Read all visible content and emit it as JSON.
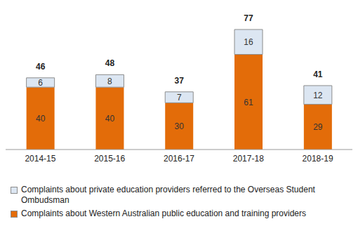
{
  "chart_data": {
    "type": "bar",
    "stacked": true,
    "data_labels": true,
    "tick_labels": "x",
    "categories": [
      "2014-15",
      "2015-16",
      "2016-17",
      "2017-18",
      "2018-19"
    ],
    "series": [
      {
        "name": "Complaints about Western Australian public education and training providers",
        "color": "#e36c09",
        "values": [
          40,
          40,
          30,
          61,
          29
        ]
      },
      {
        "name": "Complaints about private education providers referred to the Overseas Student Ombudsman",
        "color": "#dce6f2",
        "values": [
          6,
          8,
          7,
          16,
          12
        ]
      }
    ],
    "totals": [
      46,
      48,
      37,
      77,
      41
    ]
  }
}
